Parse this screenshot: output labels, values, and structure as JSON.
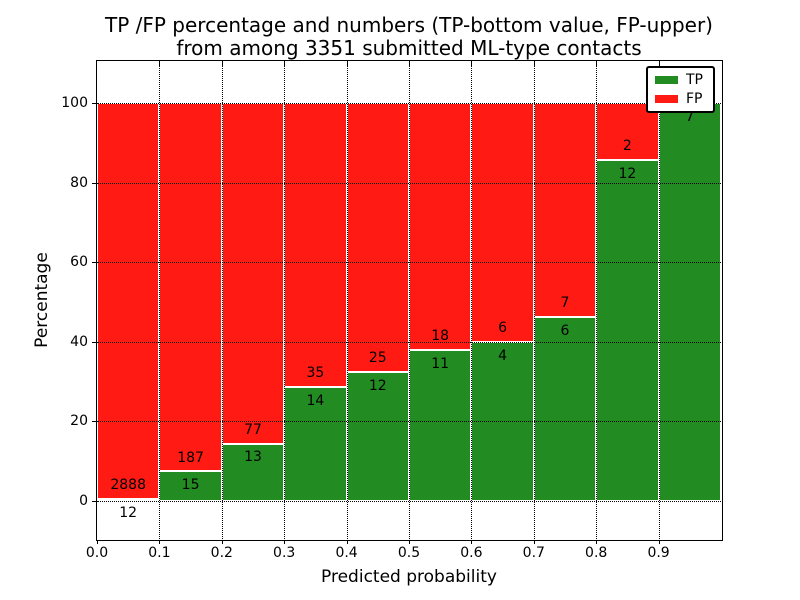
{
  "figure": {
    "title_line1": "TP /FP percentage and numbers (TP-bottom value, FP-upper)",
    "title_line2": "from among 3351 submitted ML-type contacts"
  },
  "chart_data": {
    "type": "bar",
    "stacked": true,
    "normalized_to_percent": true,
    "title": "TP /FP percentage and numbers (TP-bottom value, FP-upper) from among 3351 submitted ML-type contacts",
    "xlabel": "Predicted probability",
    "ylabel": "Percentage",
    "total_contacts": 3351,
    "bin_width": 0.1,
    "categories": [
      "0.0-0.1",
      "0.1-0.2",
      "0.2-0.3",
      "0.3-0.4",
      "0.4-0.5",
      "0.5-0.6",
      "0.6-0.7",
      "0.7-0.8",
      "0.8-0.9",
      "0.9-1.0"
    ],
    "series": [
      {
        "name": "TP",
        "color": "#228B22",
        "counts": [
          12,
          15,
          13,
          14,
          12,
          11,
          4,
          6,
          12,
          7
        ]
      },
      {
        "name": "FP",
        "color": "#ff1a14",
        "counts": [
          2888,
          187,
          77,
          35,
          25,
          18,
          6,
          7,
          2,
          0
        ]
      }
    ],
    "percent_tp": [
      0.41,
      7.43,
      14.44,
      28.57,
      32.43,
      37.93,
      40.0,
      46.15,
      85.71,
      100.0
    ],
    "x_tick_labels": [
      "0.0",
      "0.1",
      "0.2",
      "0.3",
      "0.4",
      "0.5",
      "0.6",
      "0.7",
      "0.8",
      "0.9"
    ],
    "y_ticks": [
      0,
      20,
      40,
      60,
      80,
      100
    ],
    "y_tick_labels": [
      "0",
      "20",
      "40",
      "60",
      "80",
      "100"
    ],
    "xlim": [
      0.0,
      1.0
    ],
    "ylim": [
      -9.5,
      110.6
    ],
    "grid": true,
    "grid_style": "dotted",
    "bar_edge_color": "#ffffff",
    "legend": {
      "position": "upper right",
      "entries": [
        {
          "label": "TP",
          "color": "#228B22"
        },
        {
          "label": "FP",
          "color": "#ff1a14"
        }
      ]
    }
  }
}
